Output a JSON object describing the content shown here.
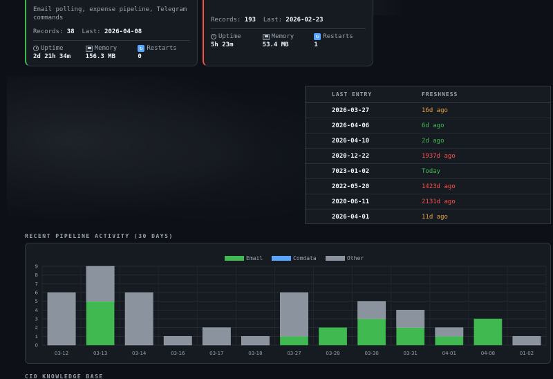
{
  "cards": [
    {
      "description": "Email polling, expense pipeline, Telegram commands",
      "records_label": "Records:",
      "records": "38",
      "last_label": "Last:",
      "last": "2026-04-08",
      "uptime_label": "Uptime",
      "uptime": "2d 21h 34m",
      "memory_label": "Memory",
      "memory": "156.3 MB",
      "restarts_label": "Restarts",
      "restarts": "0",
      "status_color": "#3fb950"
    },
    {
      "records_label": "Records:",
      "records": "193",
      "last_label": "Last:",
      "last": "2026-02-23",
      "uptime_label": "Uptime",
      "uptime": "5h 23m",
      "memory_label": "Memory",
      "memory": "53.4 MB",
      "restarts_label": "Restarts",
      "restarts": "1",
      "status_color": "#f85149"
    }
  ],
  "icons": {
    "uptime": "clock-icon",
    "memory": "floppy-disk-icon",
    "restarts": "refresh-icon"
  },
  "table": {
    "headers": [
      "LAST ENTRY",
      "FRESHNESS"
    ],
    "rows": [
      {
        "last_entry": "2026-03-27",
        "freshness": "16d ago",
        "color": "#e3a03c"
      },
      {
        "last_entry": "2026-04-06",
        "freshness": "6d ago",
        "color": "#3fb950"
      },
      {
        "last_entry": "2026-04-10",
        "freshness": "2d ago",
        "color": "#3fb950"
      },
      {
        "last_entry": "2020-12-22",
        "freshness": "1937d ago",
        "color": "#f85149"
      },
      {
        "last_entry": "7023-01-02",
        "freshness": "Today",
        "color": "#3fb950"
      },
      {
        "last_entry": "2022-05-20",
        "freshness": "1423d ago",
        "color": "#f85149"
      },
      {
        "last_entry": "2020-06-11",
        "freshness": "2131d ago",
        "color": "#f85149"
      },
      {
        "last_entry": "2026-04-01",
        "freshness": "11d ago",
        "color": "#e3a03c"
      }
    ]
  },
  "sections": {
    "activity_title": "RECENT PIPELINE ACTIVITY (30 DAYS)",
    "knowledge_title": "CIO KNOWLEDGE BASE"
  },
  "chart_data": {
    "type": "bar",
    "stacked": true,
    "categories": [
      "03-12",
      "03-13",
      "03-14",
      "03-16",
      "03-17",
      "03-18",
      "03-27",
      "03-28",
      "03-30",
      "03-31",
      "04-01",
      "04-08",
      "01-02"
    ],
    "series": [
      {
        "name": "Email",
        "color": "#3fb950",
        "values": [
          0,
          5,
          0,
          0,
          0,
          0,
          1,
          2,
          3,
          2,
          1,
          3,
          0
        ]
      },
      {
        "name": "Comdata",
        "color": "#58a6ff",
        "values": [
          0,
          0,
          0,
          0,
          0,
          0,
          0,
          0,
          0,
          0,
          0,
          0,
          0
        ]
      },
      {
        "name": "Other",
        "color": "#8b939e",
        "values": [
          6,
          4,
          6,
          1,
          2,
          1,
          5,
          0,
          2,
          2,
          1,
          0,
          1
        ]
      }
    ],
    "ylim": [
      0,
      9
    ],
    "yticks": [
      0,
      1,
      2,
      3,
      4,
      5,
      6,
      7,
      8,
      9
    ],
    "legend": "top-center",
    "grid": true
  }
}
